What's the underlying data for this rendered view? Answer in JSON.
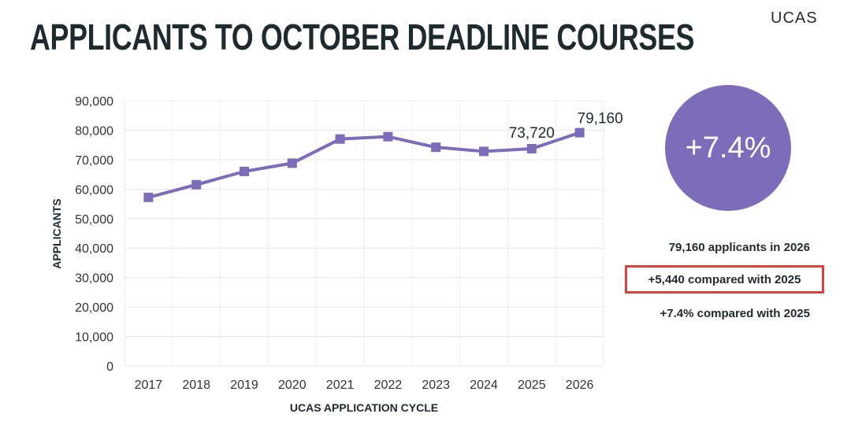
{
  "header": {
    "title": "APPLICANTS TO OCTOBER DEADLINE COURSES",
    "brand": "UCAS"
  },
  "chart_data": {
    "type": "line",
    "xlabel": "UCAS APPLICATION CYCLE",
    "ylabel": "APPLICANTS",
    "ylim": [
      0,
      90000
    ],
    "yticks": [
      0,
      10000,
      20000,
      30000,
      40000,
      50000,
      60000,
      70000,
      80000,
      90000
    ],
    "ytick_labels": [
      "0",
      "10,000",
      "20,000",
      "30,000",
      "40,000",
      "50,000",
      "60,000",
      "70,000",
      "80,000",
      "90,000"
    ],
    "categories": [
      "2017",
      "2018",
      "2019",
      "2020",
      "2021",
      "2022",
      "2023",
      "2024",
      "2025",
      "2026"
    ],
    "values": [
      57200,
      61500,
      66000,
      68800,
      77000,
      77800,
      74200,
      72800,
      73720,
      79160
    ],
    "data_labels": [
      {
        "index": 8,
        "text": "73,720"
      },
      {
        "index": 9,
        "text": "79,160"
      }
    ],
    "grid": true,
    "line_color": "#7c6cba"
  },
  "summary": {
    "percent_badge": "+7.4%",
    "stat_total": "79,160 applicants in 2026",
    "stat_diff": "+5,440 compared with 2025",
    "stat_pct": "+7.4% compared with 2025",
    "highlight_color": "#e0403a"
  }
}
